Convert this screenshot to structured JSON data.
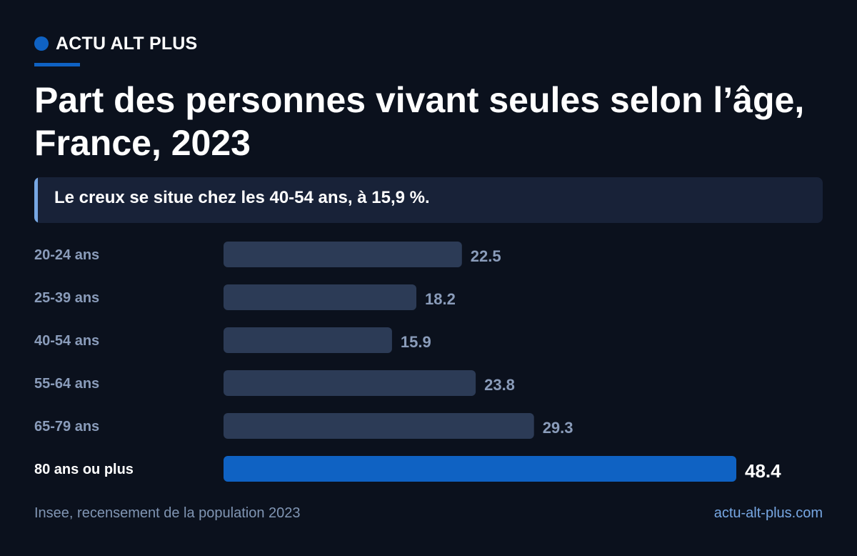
{
  "brand": {
    "name": "ACTU ALT PLUS",
    "accent_color": "#0f62c3"
  },
  "headline": "Part des personnes vivant seules selon l’âge, France, 2023",
  "callout": {
    "text": "Le creux se situe chez les 40-54 ans, à 15,9 %."
  },
  "chart_data": {
    "type": "bar",
    "orientation": "horizontal",
    "categories": [
      "20-24 ans",
      "25-39 ans",
      "40-54 ans",
      "55-64 ans",
      "65-79 ans",
      "80 ans ou plus"
    ],
    "values": [
      22.5,
      18.2,
      15.9,
      23.8,
      29.3,
      48.4
    ],
    "value_labels": [
      "22.5",
      "18.2",
      "15.9",
      "23.8",
      "29.3",
      "48.4"
    ],
    "highlight_index": 5,
    "xlim": [
      0,
      48.4
    ],
    "grid": false,
    "colors": {
      "bar": "#2c3b56",
      "highlight_bar": "#0f62c3",
      "label": "#8a9cba",
      "highlight_label": "#ffffff"
    }
  },
  "footer": {
    "source": "Insee, recensement de la population 2023",
    "site": "actu-alt-plus.com"
  }
}
